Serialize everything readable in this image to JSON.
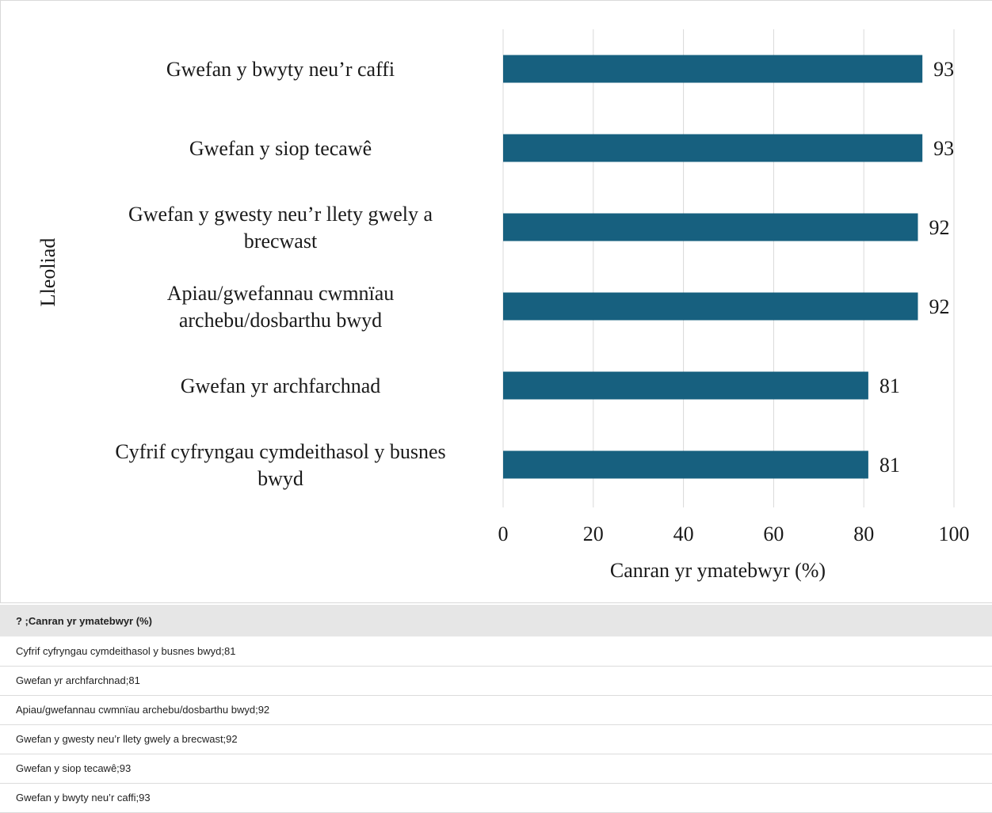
{
  "chart_data": {
    "type": "bar",
    "orientation": "horizontal",
    "title": "",
    "ylabel": "Lleoliad",
    "xlabel": "Canran yr ymatebwyr (%)",
    "xlim": [
      0,
      100
    ],
    "xticks": [
      0,
      20,
      40,
      60,
      80,
      100
    ],
    "grid": "vertical",
    "bar_color": "#17607f",
    "categories": [
      [
        "Gwefan y bwyty neu’r caffi"
      ],
      [
        "Gwefan y siop tecawê"
      ],
      [
        "Gwefan y gwesty neu’r llety gwely a",
        "brecwast"
      ],
      [
        "Apiau/gwefannau cwmnïau",
        "archebu/dosbarthu bwyd"
      ],
      [
        "Gwefan yr archfarchnad"
      ],
      [
        "Cyfrif cyfryngau cymdeithasol y busnes",
        "bwyd"
      ]
    ],
    "values": [
      93,
      93,
      92,
      92,
      81,
      81
    ]
  },
  "table": {
    "header": "? ;Canran yr ymatebwyr (%)",
    "rows": [
      "Cyfrif cyfryngau cymdeithasol y busnes bwyd;81",
      "Gwefan yr archfarchnad;81",
      "Apiau/gwefannau cwmnïau archebu/dosbarthu bwyd;92",
      "Gwefan y gwesty neu’r llety gwely a brecwast;92",
      "Gwefan y siop tecawê;93",
      "Gwefan y bwyty neu’r caffi;93"
    ]
  }
}
